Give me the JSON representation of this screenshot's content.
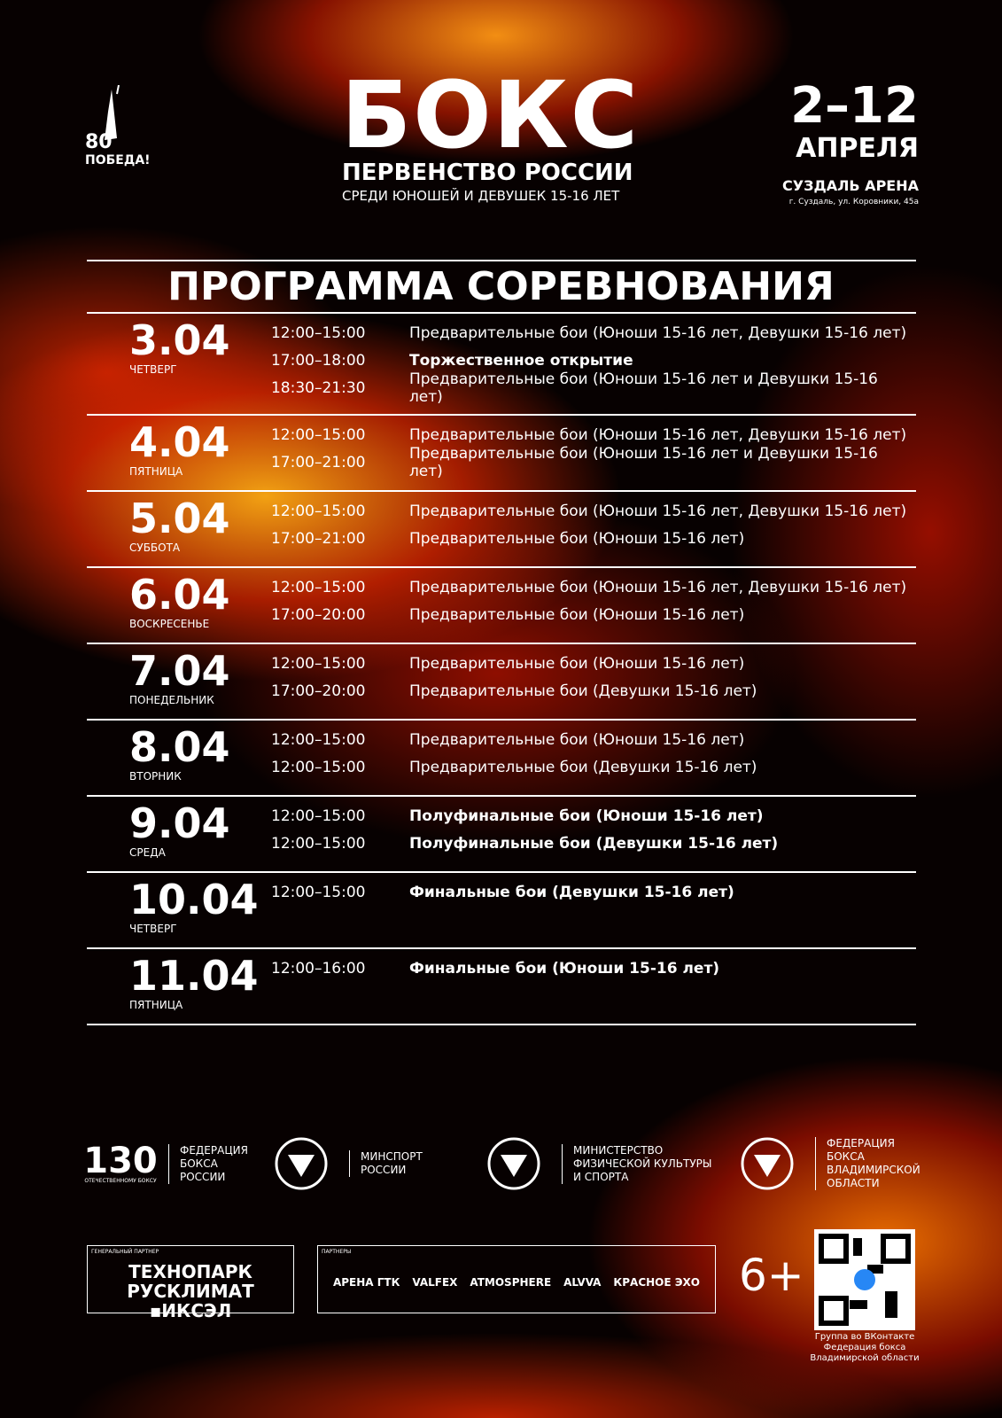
{
  "header": {
    "emblem": [
      "80",
      "ПОБЕДА!"
    ],
    "title": "БОКС",
    "subtitle": "ПЕРВЕНСТВО РОССИИ",
    "subtitle2": "СРЕДИ ЮНОШЕЙ И ДЕВУШЕК 15-16 ЛЕТ",
    "dates": "2–12",
    "month": "АПРЕЛЯ",
    "venue": "СУЗДАЛЬ АРЕНА",
    "address": "г. Суздаль, ул. Коровники, 45а"
  },
  "program": {
    "title": "ПРОГРАММА СОРЕВНОВАНИЯ",
    "days": [
      {
        "date": "3.04",
        "weekday": "ЧЕТВЕРГ",
        "events": [
          {
            "time": "12:00–15:00",
            "text": "Предварительные бои (Юноши 15-16 лет, Девушки 15-16 лет)",
            "bold": false
          },
          {
            "time": "17:00–18:00",
            "text": "Торжественное открытие",
            "bold": true
          },
          {
            "time": "18:30–21:30",
            "text": "Предварительные бои (Юноши 15-16 лет и Девушки 15-16 лет)",
            "bold": false
          }
        ]
      },
      {
        "date": "4.04",
        "weekday": "ПЯТНИЦА",
        "events": [
          {
            "time": "12:00–15:00",
            "text": "Предварительные бои (Юноши 15-16 лет, Девушки 15-16 лет)",
            "bold": false
          },
          {
            "time": "17:00–21:00",
            "text": "Предварительные бои (Юноши 15-16 лет и Девушки 15-16 лет)",
            "bold": false
          }
        ]
      },
      {
        "date": "5.04",
        "weekday": "СУББОТА",
        "events": [
          {
            "time": "12:00–15:00",
            "text": "Предварительные бои (Юноши 15-16 лет, Девушки 15-16 лет)",
            "bold": false
          },
          {
            "time": "17:00–21:00",
            "text": "Предварительные бои (Юноши 15-16 лет)",
            "bold": false
          }
        ]
      },
      {
        "date": "6.04",
        "weekday": "ВОСКРЕСЕНЬЕ",
        "events": [
          {
            "time": "12:00–15:00",
            "text": "Предварительные бои (Юноши 15-16 лет, Девушки 15-16 лет)",
            "bold": false
          },
          {
            "time": "17:00–20:00",
            "text": "Предварительные бои (Юноши 15-16 лет)",
            "bold": false
          }
        ]
      },
      {
        "date": "7.04",
        "weekday": "ПОНЕДЕЛЬНИК",
        "events": [
          {
            "time": "12:00–15:00",
            "text": "Предварительные бои (Юноши 15-16 лет)",
            "bold": false
          },
          {
            "time": "17:00–20:00",
            "text": "Предварительные бои (Девушки 15-16 лет)",
            "bold": false
          }
        ]
      },
      {
        "date": "8.04",
        "weekday": "ВТОРНИК",
        "events": [
          {
            "time": "12:00–15:00",
            "text": "Предварительные бои  (Юноши 15-16 лет)",
            "bold": false
          },
          {
            "time": "12:00–15:00",
            "text": "Предварительные бои (Девушки 15-16 лет)",
            "bold": false
          }
        ]
      },
      {
        "date": "9.04",
        "weekday": "СРЕДА",
        "events": [
          {
            "time": "12:00–15:00",
            "text": "Полуфинальные бои (Юноши 15-16 лет)",
            "bold": true
          },
          {
            "time": "12:00–15:00",
            "text": "Полуфинальные бои (Девушки 15-16 лет)",
            "bold": true
          }
        ]
      },
      {
        "date": "10.04",
        "weekday": "ЧЕТВЕРГ",
        "events": [
          {
            "time": "12:00–15:00",
            "text": "Финальные бои (Девушки 15-16 лет)",
            "bold": true
          }
        ]
      },
      {
        "date": "11.04",
        "weekday": "ПЯТНИЦА",
        "events": [
          {
            "time": "12:00–16:00",
            "text": "Финальные бои (Юноши 15-16 лет)",
            "bold": true
          }
        ]
      }
    ]
  },
  "organizers": [
    {
      "mark": "130",
      "mark_caption": "ОТЕЧЕСТВЕННОМУ БОКСУ",
      "lines": [
        "ФЕДЕРАЦИЯ",
        "БОКСА",
        "РОССИИ"
      ]
    },
    {
      "lines": [
        "МИНСПОРТ",
        "РОССИИ"
      ]
    },
    {
      "lines": [
        "МИНИСТЕРСТВО",
        "ФИЗИЧЕСКОЙ КУЛЬТУРЫ",
        "И СПОРТА"
      ]
    },
    {
      "lines": [
        "ФЕДЕРАЦИЯ",
        "БОКСА",
        "ВЛАДИМИРСКОЙ",
        "ОБЛАСТИ"
      ]
    }
  ],
  "general_partner": {
    "label": "ГЕНЕРАЛЬНЫЙ ПАРТНЕР",
    "lines": [
      "ТЕХНОПАРК",
      "РУСКЛИМАТ ▪ИКСЭЛ"
    ]
  },
  "partners": {
    "label": "ПАРТНЕРЫ",
    "items": [
      "АРЕНА ГТК",
      "VALFEX",
      "ATMOSPHERE",
      "ALVVA",
      "КРАСНОЕ ЭХО"
    ]
  },
  "age": "6+",
  "qr_caption": [
    "Группа во ВКонтакте",
    "Федерация бокса",
    "Владимирской области"
  ]
}
